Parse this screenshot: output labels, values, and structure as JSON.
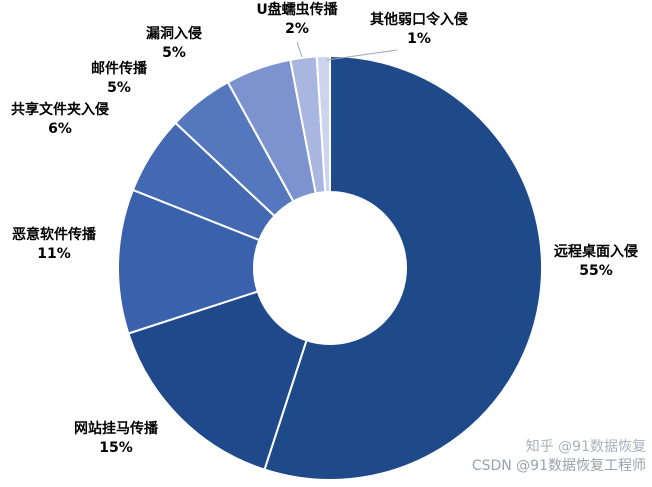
{
  "chart_data": {
    "type": "pie",
    "subtype": "donut",
    "title": "",
    "legend": "none",
    "background": "#FFFFFF",
    "slice_border_color": "#FFFFFF",
    "start_angle_deg": 0,
    "direction": "clockwise",
    "slices": [
      {
        "label": "远程桌面入侵",
        "value": 55,
        "pct_label": "55%",
        "color": "#1E4A89"
      },
      {
        "label": "网站挂马传播",
        "value": 15,
        "pct_label": "15%",
        "color": "#20498C"
      },
      {
        "label": "恶意软件传播",
        "value": 11,
        "pct_label": "11%",
        "color": "#3A62AC"
      },
      {
        "label": "共享文件夹入侵",
        "value": 6,
        "pct_label": "6%",
        "color": "#4469B3"
      },
      {
        "label": "邮件传播",
        "value": 5,
        "pct_label": "5%",
        "color": "#5577BE"
      },
      {
        "label": "漏洞入侵",
        "value": 5,
        "pct_label": "5%",
        "color": "#7D93D0"
      },
      {
        "label": "U盘蠕虫传播",
        "value": 2,
        "pct_label": "2%",
        "color": "#A9B6E0"
      },
      {
        "label": "其他弱口令入侵",
        "value": 1,
        "pct_label": "1%",
        "color": "#CDD5EE"
      }
    ]
  },
  "watermarks": [
    "知乎 @91数据恢复",
    "CSDN @91数据恢复工程师"
  ]
}
